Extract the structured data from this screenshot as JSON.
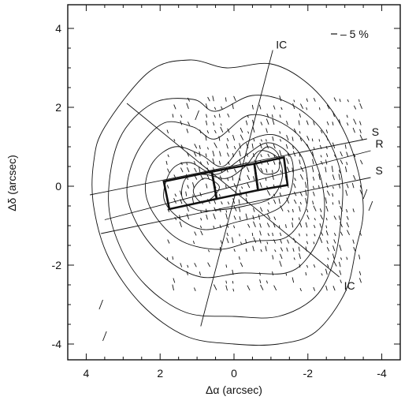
{
  "chart_data": {
    "type": "contour",
    "xlabel": "Δα (arcsec)",
    "ylabel": "Δδ (arcsec)",
    "xlim": [
      4.5,
      -4.5
    ],
    "ylim": [
      -4.4,
      4.6
    ],
    "x_ticks": [
      4,
      2,
      0,
      -2,
      -4
    ],
    "x_tick_labels": [
      "4",
      "2",
      "0",
      "-2",
      "-4"
    ],
    "y_ticks": [
      4,
      2,
      0,
      -2,
      -4
    ],
    "y_tick_labels": [
      "4",
      "2",
      "0",
      "-2",
      "-4"
    ],
    "legend": "– 5 %",
    "colors": {
      "ink": "#111111",
      "background": "#ffffff"
    },
    "contours": [
      [
        [
          3.5,
          1.5
        ],
        [
          2.3,
          2.9
        ],
        [
          1.2,
          3.2
        ],
        [
          0.2,
          3.0
        ],
        [
          -1.0,
          3.1
        ],
        [
          -2.0,
          2.6
        ],
        [
          -2.8,
          1.7
        ],
        [
          -3.3,
          0.6
        ],
        [
          -3.5,
          -0.6
        ],
        [
          -3.3,
          -1.6
        ],
        [
          -3.0,
          -2.7
        ],
        [
          -2.2,
          -3.7
        ],
        [
          -1.2,
          -4.0
        ],
        [
          0.0,
          -4.0
        ],
        [
          1.3,
          -3.8
        ],
        [
          2.5,
          -3.0
        ],
        [
          3.4,
          -1.8
        ],
        [
          3.8,
          -0.5
        ],
        [
          3.8,
          0.6
        ]
      ],
      [
        [
          3.1,
          1.2
        ],
        [
          2.2,
          2.1
        ],
        [
          1.1,
          2.2
        ],
        [
          0.5,
          1.9
        ],
        [
          -0.5,
          2.3
        ],
        [
          -1.5,
          2.1
        ],
        [
          -2.4,
          1.4
        ],
        [
          -2.9,
          0.3
        ],
        [
          -2.9,
          -0.8
        ],
        [
          -2.7,
          -1.9
        ],
        [
          -2.2,
          -2.8
        ],
        [
          -1.2,
          -3.3
        ],
        [
          0.0,
          -3.3
        ],
        [
          1.3,
          -3.2
        ],
        [
          2.4,
          -2.5
        ],
        [
          3.1,
          -1.5
        ],
        [
          3.4,
          -0.3
        ]
      ],
      [
        [
          2.6,
          0.9
        ],
        [
          1.9,
          1.6
        ],
        [
          1.1,
          1.5
        ],
        [
          0.5,
          1.2
        ],
        [
          -0.4,
          1.8
        ],
        [
          -1.3,
          1.6
        ],
        [
          -2.0,
          1.0
        ],
        [
          -2.4,
          0.0
        ],
        [
          -2.4,
          -1.0
        ],
        [
          -2.0,
          -1.8
        ],
        [
          -1.4,
          -2.2
        ],
        [
          -0.2,
          -2.2
        ],
        [
          0.9,
          -2.3
        ],
        [
          1.9,
          -1.8
        ],
        [
          2.6,
          -1.0
        ],
        [
          2.9,
          -0.1
        ]
      ],
      [
        [
          2.2,
          0.6
        ],
        [
          1.6,
          1.0
        ],
        [
          0.9,
          0.8
        ],
        [
          0.3,
          0.5
        ],
        [
          -0.3,
          1.1
        ],
        [
          -1.1,
          1.3
        ],
        [
          -1.8,
          0.8
        ],
        [
          -2.0,
          0.0
        ],
        [
          -1.9,
          -0.7
        ],
        [
          -1.4,
          -1.3
        ],
        [
          -0.5,
          -1.4
        ],
        [
          0.4,
          -1.6
        ],
        [
          1.4,
          -1.4
        ],
        [
          2.1,
          -0.8
        ],
        [
          2.4,
          -0.1
        ]
      ],
      [
        [
          1.7,
          0.4
        ],
        [
          1.2,
          0.6
        ],
        [
          0.5,
          0.3
        ],
        [
          -0.2,
          0.7
        ],
        [
          -0.9,
          1.1
        ],
        [
          -1.5,
          0.8
        ],
        [
          -1.6,
          0.2
        ],
        [
          -1.4,
          -0.4
        ],
        [
          -0.9,
          -0.7
        ],
        [
          -0.1,
          -0.9
        ],
        [
          0.8,
          -1.1
        ],
        [
          1.5,
          -0.8
        ],
        [
          1.9,
          -0.3
        ]
      ],
      [
        [
          1.3,
          0.2
        ],
        [
          0.8,
          0.3
        ],
        [
          0.2,
          0.2
        ],
        [
          -0.3,
          0.5
        ],
        [
          -0.7,
          0.9
        ],
        [
          -1.2,
          0.7
        ],
        [
          -1.3,
          0.2
        ],
        [
          -1.0,
          -0.3
        ],
        [
          -0.3,
          -0.5
        ],
        [
          0.4,
          -0.6
        ],
        [
          1.0,
          -0.6
        ],
        [
          1.4,
          -0.3
        ]
      ],
      [
        [
          1.1,
          -0.1
        ],
        [
          0.8,
          0.2
        ],
        [
          0.4,
          0.0
        ],
        [
          0.6,
          -0.3
        ],
        [
          0.9,
          -0.4
        ]
      ],
      [
        [
          -0.6,
          0.7
        ],
        [
          -0.9,
          1.0
        ],
        [
          -1.2,
          0.8
        ],
        [
          -1.2,
          0.4
        ],
        [
          -0.9,
          0.3
        ],
        [
          -0.7,
          0.4
        ]
      ]
    ],
    "slits": [
      {
        "label": "S",
        "x1": 3.9,
        "y1": -0.22,
        "x2": -3.6,
        "y2": 1.2
      },
      {
        "label": "R",
        "x1": 3.5,
        "y1": -0.85,
        "x2": -3.7,
        "y2": 0.9
      },
      {
        "label": "S",
        "x1": 3.6,
        "y1": -1.2,
        "x2": -3.7,
        "y2": 0.22
      }
    ],
    "ic_lines": [
      {
        "label": "IC",
        "x1": 0.9,
        "y1": -3.55,
        "x2": -1.05,
        "y2": 3.45
      },
      {
        "label": "IC",
        "x1": 2.9,
        "y1": 2.1,
        "x2": -2.85,
        "y2": -2.3
      }
    ],
    "boxes": [
      [
        [
          1.9,
          0.12
        ],
        [
          0.6,
          0.37
        ],
        [
          0.47,
          -0.32
        ],
        [
          1.75,
          -0.58
        ]
      ],
      [
        [
          0.6,
          0.37
        ],
        [
          -0.55,
          0.57
        ],
        [
          -0.65,
          -0.1
        ],
        [
          0.47,
          -0.32
        ]
      ],
      [
        [
          -0.55,
          0.57
        ],
        [
          -1.35,
          0.73
        ],
        [
          -1.45,
          0.03
        ],
        [
          -0.65,
          -0.1
        ]
      ]
    ],
    "vectors": {
      "region": {
        "x_min": -3.5,
        "x_max": 1.8,
        "y_min": -2.6,
        "y_max": 2.2
      },
      "angle_deg": 70,
      "length_range": [
        0.06,
        0.16
      ],
      "note": "polarization vectors, scale bar 5%"
    }
  }
}
